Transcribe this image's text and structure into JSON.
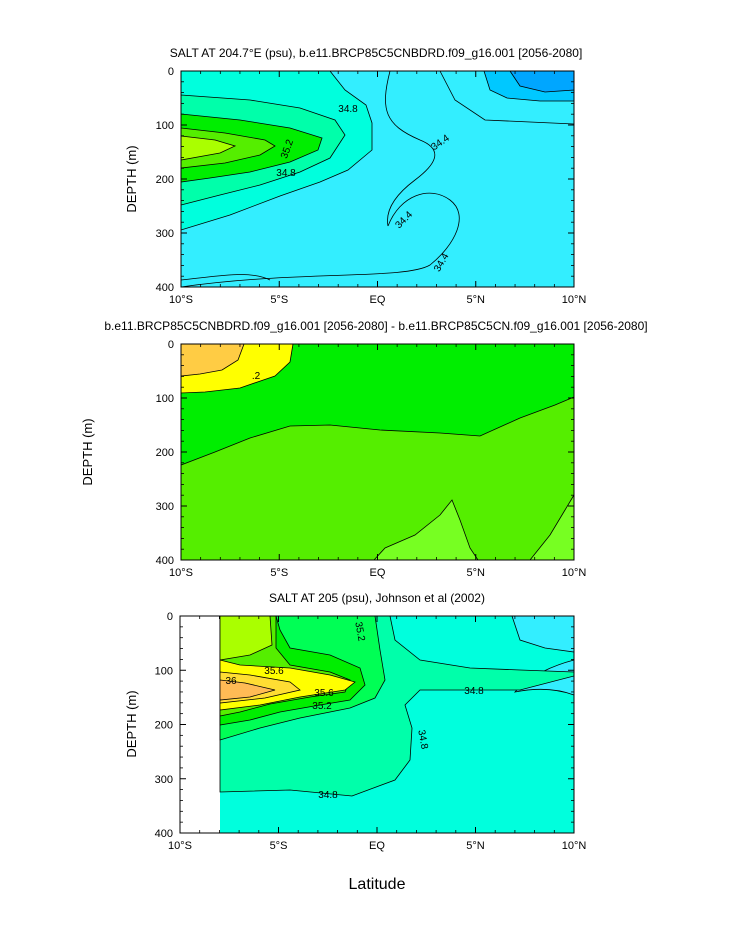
{
  "figure": {
    "xlabel": "Latitude",
    "colors": {
      "deep_blue": "#00a6ff",
      "light_blue": "#00c8ff",
      "cyan": "#33eeff",
      "aqua": "#00ffdd",
      "turquoise": "#00ffaa",
      "green": "#00ff55",
      "bright_green": "#00ee00",
      "lime": "#55ee00",
      "yellow_green": "#aaff00",
      "yellow": "#ffff00",
      "yellow_orange": "#ffdd33",
      "orange": "#ffcc44",
      "light_orange": "#ffbb55",
      "contour_line": "#000000"
    }
  },
  "chart_data": [
    {
      "type": "contour",
      "title": "SALT AT 204.7°E (psu), b.e11.BRCP85C5CNBDRD.f09_g16.001 [2056-2080]",
      "ylabel": "DEPTH (m)",
      "xlim": [
        -10,
        10
      ],
      "ylim": [
        400,
        0
      ],
      "x_ticks": [
        "10°S",
        "5°S",
        "EQ",
        "5°N",
        "10°N"
      ],
      "y_ticks": [
        "0",
        "100",
        "200",
        "300",
        "400"
      ],
      "contour_labels": [
        "34.8",
        "35.2",
        "34.8",
        "34.4",
        "34.4",
        "34.4"
      ],
      "max_salinity_core": {
        "lat": -7.5,
        "depth": 145
      }
    },
    {
      "type": "contour",
      "title": "b.e11.BRCP85C5CNBDRD.f09_g16.001 [2056-2080] - b.e11.BRCP85C5CN.f09_g16.001 [2056-2080]",
      "ylabel": "DEPTH (m)",
      "xlim": [
        -10,
        10
      ],
      "ylim": [
        400,
        0
      ],
      "x_ticks": [
        "10°S",
        "5°S",
        "EQ",
        "5°N",
        "10°N"
      ],
      "y_ticks": [
        "0",
        "100",
        "200",
        "300",
        "400"
      ],
      "contour_labels": [
        ".2"
      ]
    },
    {
      "type": "contour",
      "title": "SALT AT 205 (psu), Johnson et al (2002)",
      "ylabel": "DEPTH (m)",
      "xlim": [
        -10,
        10
      ],
      "ylim": [
        400,
        0
      ],
      "x_ticks": [
        "10°S",
        "5°S",
        "EQ",
        "5°N",
        "10°N"
      ],
      "y_ticks": [
        "0",
        "100",
        "200",
        "300",
        "400"
      ],
      "contour_labels": [
        "35.2",
        "35.6",
        "36",
        "35.6",
        "35.2",
        "34.8",
        "34.8",
        "34.8"
      ],
      "data_start_lat": -8,
      "max_salinity_core": {
        "lat": -7.5,
        "depth": 140
      }
    }
  ]
}
